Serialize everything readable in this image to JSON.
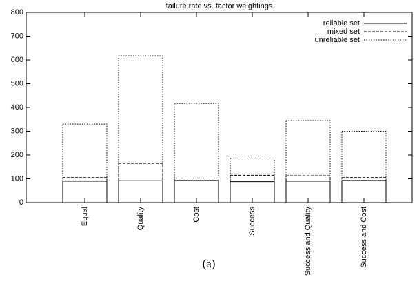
{
  "chart_data": {
    "type": "bar",
    "title": "failure rate vs. factor weightings",
    "categories": [
      "Equal",
      "Quality",
      "Cost",
      "Success",
      "Success and Quality",
      "Success and Cost"
    ],
    "series": [
      {
        "name": "reliable set",
        "color": "#000000",
        "dash": "solid",
        "values": [
          90,
          92,
          93,
          88,
          90,
          93
        ]
      },
      {
        "name": "mixed set",
        "color": "#000000",
        "dash": "dashed",
        "values": [
          105,
          165,
          103,
          115,
          113,
          105
        ]
      },
      {
        "name": "unreliable set",
        "color": "#000000",
        "dash": "dotted",
        "values": [
          330,
          617,
          417,
          187,
          345,
          300
        ]
      }
    ],
    "ylim": [
      0,
      800
    ],
    "yticks": [
      0,
      100,
      200,
      300,
      400,
      500,
      600,
      700,
      800
    ],
    "grid": false,
    "legend": "top-right",
    "caption": "(a)"
  }
}
